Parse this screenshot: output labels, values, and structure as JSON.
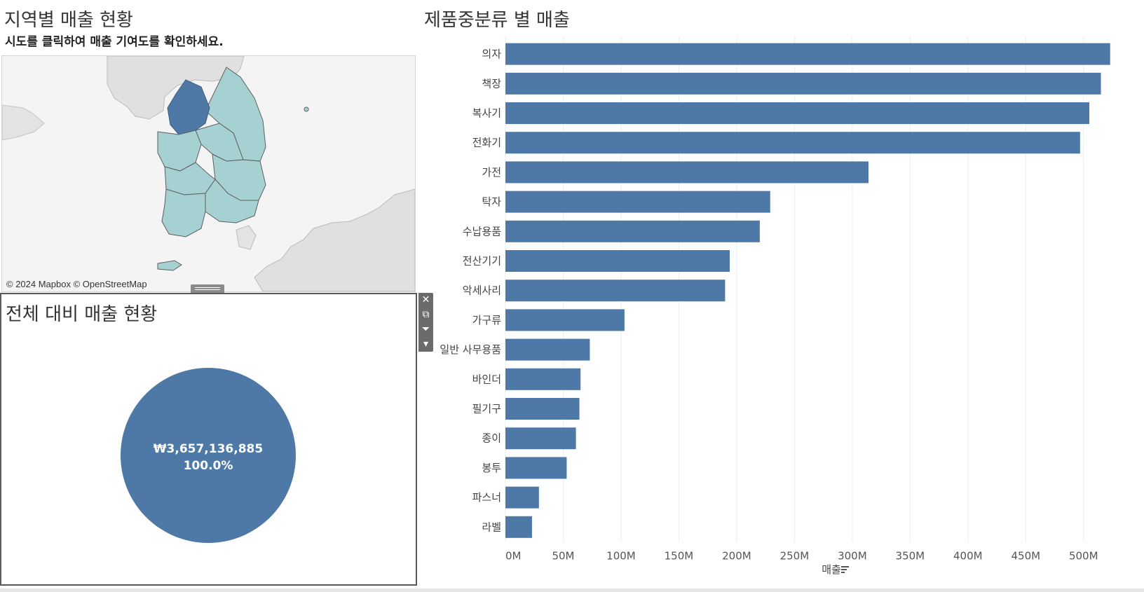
{
  "map_panel": {
    "title": "지역별 매출 현황",
    "subtitle": "시도를 클릭하여 매출 기여도를 확인하세요.",
    "attribution": "© 2024 Mapbox © OpenStreetMap",
    "colors": {
      "land": "#e0e0e0",
      "region": "#a6d1d2",
      "selected": "#4e79a7",
      "border": "#5e5e5e"
    }
  },
  "pie_panel": {
    "title": "전체 대비 매출 현황",
    "amount_label": "₩3,657,136,885",
    "percent_label": "100.0%",
    "share": 1.0,
    "color": "#4e79a7"
  },
  "toolbar": {
    "icons": [
      "close-icon",
      "popout-icon",
      "filter-icon",
      "dropdown-icon"
    ]
  },
  "bar_panel": {
    "title": "제품중분류 별 매출"
  },
  "chart_data": {
    "type": "bar",
    "orientation": "horizontal",
    "title": "제품중분류 별 매출",
    "xlabel": "매출",
    "ylabel": "",
    "categories": [
      "의자",
      "책장",
      "복사기",
      "전화기",
      "가전",
      "탁자",
      "수납용품",
      "전산기기",
      "악세사리",
      "가구류",
      "일반 사무용품",
      "바인더",
      "필기구",
      "종이",
      "봉투",
      "파스너",
      "라벨"
    ],
    "values": [
      523,
      515,
      505,
      497,
      314,
      229,
      220,
      194,
      190,
      103,
      73,
      65,
      64,
      61,
      53,
      29,
      23
    ],
    "value_unit": "M",
    "xlim": [
      0,
      545
    ],
    "xticks": [
      "0M",
      "50M",
      "100M",
      "150M",
      "200M",
      "250M",
      "300M",
      "350M",
      "400M",
      "450M",
      "500M"
    ],
    "grid": true,
    "color": "#4e79a7",
    "sort": "descending"
  }
}
